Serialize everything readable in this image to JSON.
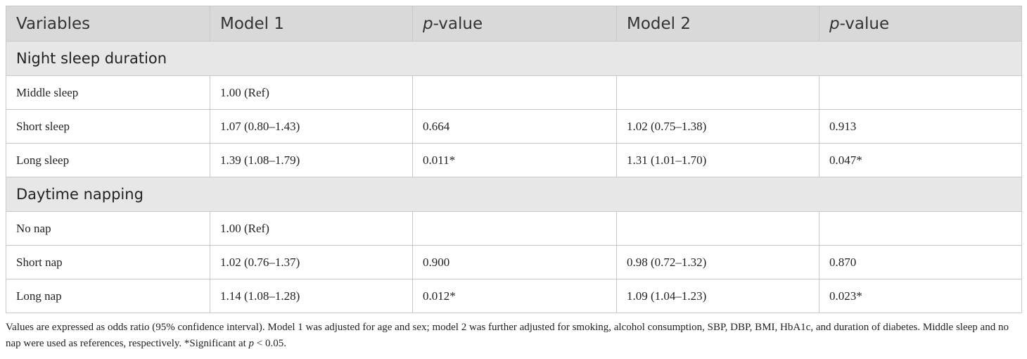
{
  "table": {
    "header": [
      {
        "text": "Variables"
      },
      {
        "text": "Model 1"
      },
      {
        "em": "p",
        "text": "-value"
      },
      {
        "text": "Model 2"
      },
      {
        "em": "p",
        "text": "-value"
      }
    ],
    "sections": [
      {
        "title": "Night sleep duration",
        "rows": [
          [
            "Middle sleep",
            "1.00 (Ref)",
            null,
            null,
            null
          ],
          [
            "Short sleep",
            "1.07 (0.80–1.43)",
            "0.664",
            "1.02 (0.75–1.38)",
            "0.913"
          ],
          [
            "Long sleep",
            "1.39 (1.08–1.79)",
            "0.011*",
            "1.31 (1.01–1.70)",
            "0.047*"
          ]
        ]
      },
      {
        "title": "Daytime napping",
        "rows": [
          [
            "No nap",
            "1.00 (Ref)",
            null,
            null,
            null
          ],
          [
            "Short nap",
            "1.02 (0.76–1.37)",
            "0.900",
            "0.98 (0.72–1.32)",
            "0.870"
          ],
          [
            "Long nap",
            "1.14 (1.08–1.28)",
            "0.012*",
            "1.09 (1.04–1.23)",
            "0.023*"
          ]
        ]
      }
    ],
    "footnote": {
      "before": "Values are expressed as odds ratio (95% confidence interval). Model 1 was adjusted for age and sex; model 2 was further adjusted for smoking, alcohol consumption, SBP, DBP, BMI, HbA1c, and duration of diabetes. Middle sleep and no nap were used as references, respectively. *Significant at ",
      "em": "p",
      "after": " < 0.05."
    }
  }
}
